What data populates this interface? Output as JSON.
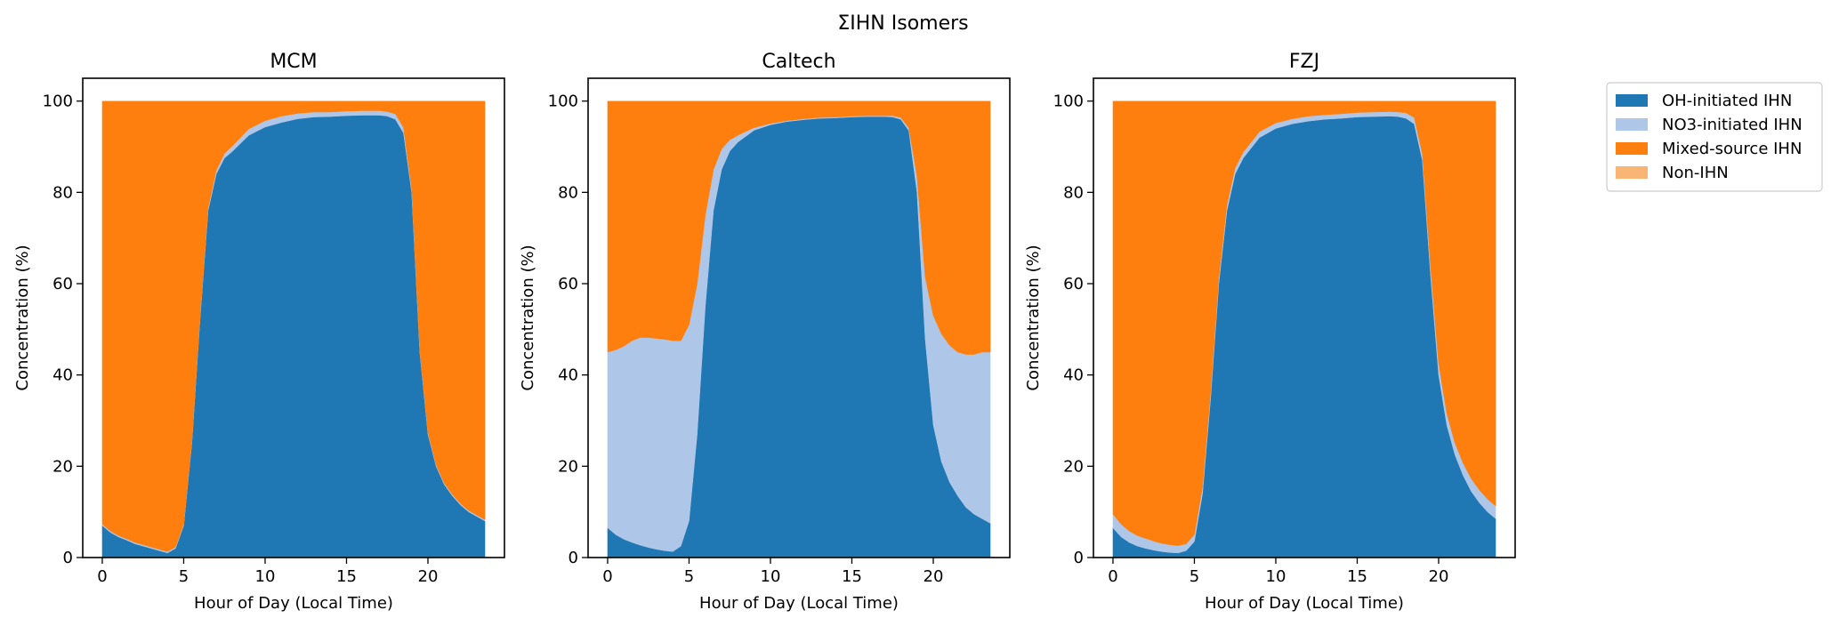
{
  "figure": {
    "suptitle": "ΣIHN Isomers"
  },
  "legend": {
    "placement": "right, outside panels",
    "entries": [
      {
        "label": "OH-initiated IHN",
        "color": "#1f77b4"
      },
      {
        "label": "NO3-initiated IHN",
        "color": "#aec7e8"
      },
      {
        "label": "Mixed-source IHN",
        "color": "#ff7f0e"
      },
      {
        "label": "Non-IHN",
        "color": "#f9b574"
      }
    ]
  },
  "chart_data": [
    {
      "type": "area",
      "stacked": true,
      "title": "MCM",
      "xlabel": "Hour of Day (Local Time)",
      "ylabel": "Concentration (%)",
      "xlim": [
        -1.2,
        24.7
      ],
      "ylim": [
        0,
        105
      ],
      "xticks": [
        0,
        5,
        10,
        15,
        20
      ],
      "yticks": [
        0,
        20,
        40,
        60,
        80,
        100
      ],
      "grid": false,
      "x": [
        0,
        0.5,
        1,
        1.5,
        2,
        2.5,
        3,
        3.5,
        4,
        4.5,
        5,
        5.5,
        6,
        6.5,
        7,
        7.5,
        8,
        9,
        10,
        11,
        12,
        13,
        14,
        15,
        16,
        17,
        17.5,
        18,
        18.5,
        19,
        19.5,
        20,
        20.5,
        21,
        21.5,
        22,
        22.5,
        23,
        23.5
      ],
      "series": [
        {
          "name": "OH-initiated IHN",
          "color": "#1f77b4",
          "values": [
            7,
            5.5,
            4.5,
            3.8,
            3.0,
            2.5,
            2.0,
            1.5,
            1.0,
            2.0,
            7,
            25,
            52,
            76,
            84,
            87.5,
            89,
            92.5,
            94.3,
            95.3,
            96.1,
            96.5,
            96.6,
            96.8,
            96.9,
            96.9,
            96.7,
            96.0,
            93,
            80,
            45,
            27,
            20,
            16,
            13.5,
            11.5,
            10,
            9,
            8
          ]
        },
        {
          "name": "NO3-initiated IHN",
          "color": "#aec7e8",
          "values": [
            0.3,
            0.3,
            0.3,
            0.3,
            0.3,
            0.3,
            0.3,
            0.3,
            0.3,
            0.3,
            0.3,
            0.4,
            0.5,
            0.6,
            0.8,
            1.0,
            1.2,
            1.4,
            1.4,
            1.4,
            1.2,
            1.1,
            1.0,
            1.0,
            1.0,
            1.0,
            1.0,
            1.2,
            1.2,
            0.8,
            0.5,
            0.4,
            0.3,
            0.3,
            0.3,
            0.3,
            0.3,
            0.3,
            0.3
          ]
        },
        {
          "name": "Mixed-source IHN",
          "color": "#ff7f0e",
          "values": [
            92.7,
            94.2,
            95.2,
            95.9,
            96.7,
            97.2,
            97.7,
            98.2,
            98.7,
            97.7,
            92.7,
            74.6,
            47.5,
            23.4,
            15.2,
            11.5,
            9.8,
            6.1,
            4.3,
            3.3,
            2.7,
            2.4,
            2.4,
            2.2,
            2.1,
            2.1,
            2.3,
            2.8,
            5.8,
            19.2,
            54.5,
            72.6,
            79.7,
            83.7,
            86.2,
            88.2,
            89.7,
            90.7,
            91.7
          ]
        },
        {
          "name": "Non-IHN",
          "color": "#f9b574",
          "values": [
            0,
            0,
            0,
            0,
            0,
            0,
            0,
            0,
            0,
            0,
            0,
            0,
            0,
            0,
            0,
            0,
            0,
            0,
            0,
            0,
            0,
            0,
            0,
            0,
            0,
            0,
            0,
            0,
            0,
            0,
            0,
            0,
            0,
            0,
            0,
            0,
            0,
            0,
            0
          ]
        }
      ]
    },
    {
      "type": "area",
      "stacked": true,
      "title": "Caltech",
      "xlabel": "Hour of Day (Local Time)",
      "ylabel": "Concentration (%)",
      "xlim": [
        -1.2,
        24.7
      ],
      "ylim": [
        0,
        105
      ],
      "xticks": [
        0,
        5,
        10,
        15,
        20
      ],
      "yticks": [
        0,
        20,
        40,
        60,
        80,
        100
      ],
      "grid": false,
      "x": [
        0,
        0.5,
        1,
        1.5,
        2,
        2.5,
        3,
        3.5,
        4,
        4.5,
        5,
        5.5,
        6,
        6.5,
        7,
        7.5,
        8,
        9,
        10,
        11,
        12,
        13,
        14,
        15,
        16,
        17,
        17.5,
        18,
        18.5,
        19,
        19.5,
        20,
        20.5,
        21,
        21.5,
        22,
        22.5,
        23,
        23.5
      ],
      "series": [
        {
          "name": "OH-initiated IHN",
          "color": "#1f77b4",
          "values": [
            6.5,
            5.0,
            4.0,
            3.3,
            2.7,
            2.2,
            1.8,
            1.5,
            1.3,
            2.5,
            8,
            27,
            55,
            76,
            85,
            89,
            91,
            93.6,
            94.8,
            95.5,
            95.9,
            96.2,
            96.3,
            96.5,
            96.6,
            96.6,
            96.5,
            96.0,
            93.5,
            80,
            48,
            29,
            21,
            16.5,
            13.5,
            11,
            9.5,
            8.5,
            7.5
          ]
        },
        {
          "name": "NO3-initiated IHN",
          "color": "#aec7e8",
          "values": [
            38.5,
            40.5,
            42.3,
            44.2,
            45.5,
            46.0,
            46.2,
            46.3,
            46.2,
            45.0,
            43,
            33,
            20,
            9,
            4.5,
            2.5,
            1.5,
            0.6,
            0.3,
            0.2,
            0.2,
            0.2,
            0.2,
            0.2,
            0.2,
            0.2,
            0.3,
            0.4,
            0.6,
            3.5,
            13.5,
            24,
            28,
            30,
            31.5,
            33.5,
            35,
            36.5,
            37.5
          ]
        },
        {
          "name": "Mixed-source IHN",
          "color": "#ff7f0e",
          "values": [
            55,
            54.5,
            53.7,
            52.5,
            51.8,
            51.8,
            52.0,
            52.2,
            52.5,
            52.5,
            49,
            40,
            25,
            15,
            10.5,
            8.5,
            7.5,
            5.8,
            4.9,
            4.3,
            3.9,
            3.6,
            3.5,
            3.3,
            3.2,
            3.2,
            3.2,
            3.6,
            5.9,
            16.5,
            38.5,
            47,
            51,
            53.5,
            55,
            55.5,
            55.5,
            55,
            55
          ]
        },
        {
          "name": "Non-IHN",
          "color": "#f9b574",
          "values": [
            0,
            0,
            0,
            0,
            0,
            0,
            0,
            0,
            0,
            0,
            0,
            0,
            0,
            0,
            0,
            0,
            0,
            0,
            0,
            0,
            0,
            0,
            0,
            0,
            0,
            0,
            0,
            0,
            0,
            0,
            0,
            0,
            0,
            0,
            0,
            0,
            0,
            0,
            0
          ]
        }
      ]
    },
    {
      "type": "area",
      "stacked": true,
      "title": "FZJ",
      "xlabel": "Hour of Day (Local Time)",
      "ylabel": "Concentration (%)",
      "xlim": [
        -1.2,
        24.7
      ],
      "ylim": [
        0,
        105
      ],
      "xticks": [
        0,
        5,
        10,
        15,
        20
      ],
      "yticks": [
        0,
        20,
        40,
        60,
        80,
        100
      ],
      "grid": false,
      "x": [
        0,
        0.5,
        1,
        1.5,
        2,
        2.5,
        3,
        3.5,
        4,
        4.5,
        5,
        5.5,
        6,
        6.5,
        7,
        7.5,
        8,
        9,
        10,
        11,
        12,
        13,
        14,
        15,
        16,
        17,
        17.5,
        18,
        18.5,
        19,
        19.5,
        20,
        20.5,
        21,
        21.5,
        22,
        22.5,
        23,
        23.5
      ],
      "series": [
        {
          "name": "OH-initiated IHN",
          "color": "#1f77b4",
          "values": [
            6.5,
            4.5,
            3.3,
            2.5,
            2.0,
            1.6,
            1.3,
            1.1,
            1.0,
            1.5,
            3.5,
            14,
            35,
            60,
            76,
            84,
            87.5,
            92,
            94,
            95,
            95.6,
            96.0,
            96.2,
            96.5,
            96.6,
            96.7,
            96.6,
            96.2,
            95,
            87,
            62,
            40,
            29,
            22.5,
            18,
            14.5,
            12,
            10,
            8.5
          ]
        },
        {
          "name": "NO3-initiated IHN",
          "color": "#aec7e8",
          "values": [
            3,
            2.8,
            2.5,
            2.3,
            2.2,
            2.0,
            1.8,
            1.7,
            1.6,
            1.5,
            1.5,
            1.5,
            1.4,
            1.3,
            1.3,
            1.3,
            1.3,
            1.3,
            1.2,
            1.1,
            1.1,
            1.0,
            1.0,
            1.0,
            1.0,
            1.0,
            1.0,
            1.2,
            1.4,
            1.5,
            2.0,
            2.5,
            2.6,
            2.6,
            2.7,
            2.8,
            2.8,
            2.8,
            2.8
          ]
        },
        {
          "name": "Mixed-source IHN",
          "color": "#ff7f0e",
          "values": [
            90.5,
            92.7,
            94.2,
            95.2,
            95.8,
            96.4,
            96.9,
            97.2,
            97.4,
            97,
            95,
            84.5,
            63.6,
            38.7,
            22.7,
            14.7,
            11.2,
            6.7,
            4.8,
            3.9,
            3.3,
            3.0,
            2.8,
            2.5,
            2.4,
            2.3,
            2.4,
            2.6,
            3.6,
            11.5,
            36,
            57.5,
            68.4,
            74.9,
            79.3,
            82.7,
            85.2,
            87.2,
            88.7
          ]
        },
        {
          "name": "Non-IHN",
          "color": "#f9b574",
          "values": [
            0,
            0,
            0,
            0,
            0,
            0,
            0,
            0,
            0,
            0,
            0,
            0,
            0,
            0,
            0,
            0,
            0,
            0,
            0,
            0,
            0,
            0,
            0,
            0,
            0,
            0,
            0,
            0,
            0,
            0,
            0,
            0,
            0,
            0,
            0,
            0,
            0,
            0,
            0
          ]
        }
      ]
    }
  ]
}
